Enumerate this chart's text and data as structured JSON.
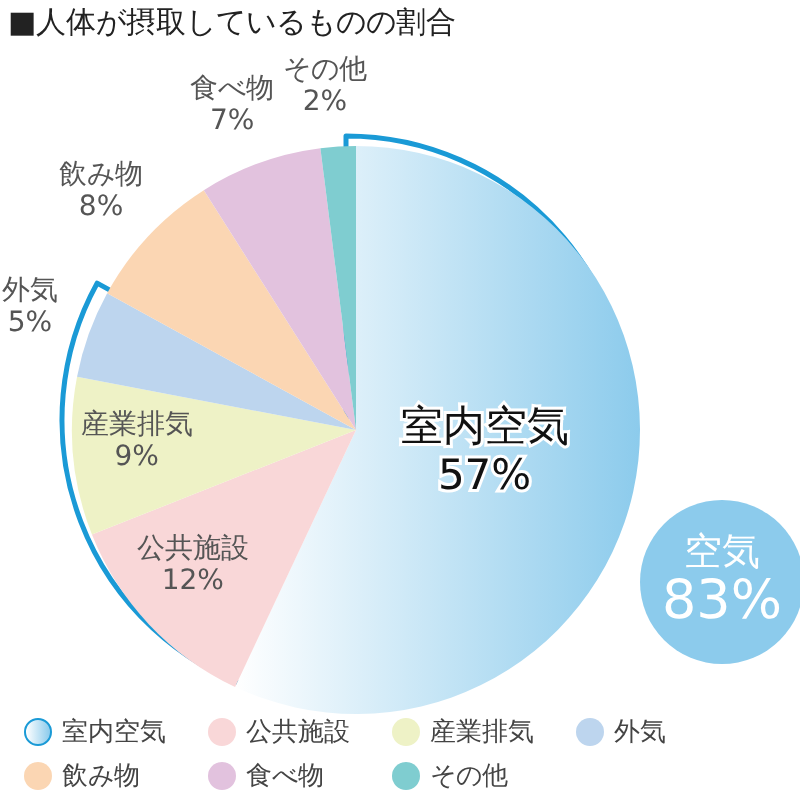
{
  "chart_data": {
    "type": "pie",
    "title": "■人体が摂取しているものの割合",
    "categories": [
      "室内空気",
      "公共施設",
      "産業排気",
      "外気",
      "飲み物",
      "食べ物",
      "その他"
    ],
    "values": [
      57,
      12,
      9,
      5,
      8,
      7,
      2
    ],
    "value_labels": [
      "57%",
      "12%",
      "9%",
      "5%",
      "8%",
      "7%",
      "2%"
    ],
    "colors": [
      "#8ccbec",
      "#f9d7d8",
      "#eef2c6",
      "#bdd5ee",
      "#fbd6b3",
      "#e2c2de",
      "#7fcdd0"
    ],
    "annotations": [
      "空気 83%"
    ],
    "legend": "bottom"
  }
}
